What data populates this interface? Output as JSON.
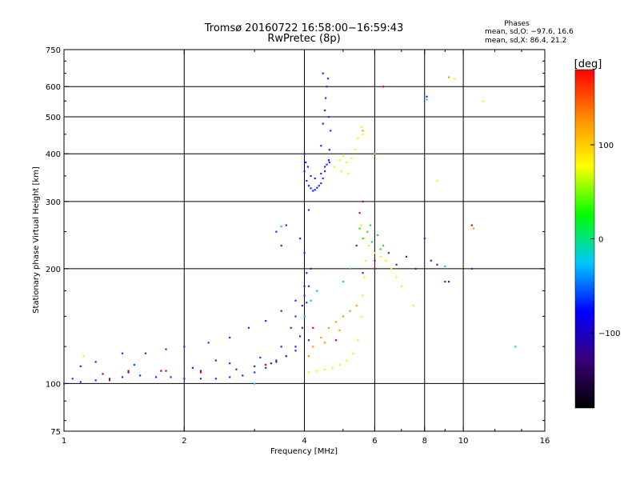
{
  "header": {
    "title_line1": "Tromsø 20160722 16:58:00−16:59:43",
    "title_line2": "RwPretec (8p)"
  },
  "phases_box": {
    "heading": "Phases",
    "o_line": "mean, sd,O: −97.6, 16.6",
    "x_line": "mean, sd,X:  86.4, 21.2"
  },
  "colorbar": {
    "unit_label": "[deg]",
    "tick_labels": [
      "100",
      "0",
      "−100"
    ],
    "tick_values": [
      100,
      0,
      -100
    ],
    "range": [
      -180,
      180
    ],
    "colormap": [
      "#000000",
      "#3a0078",
      "#0000ff",
      "#00c8ff",
      "#00ff00",
      "#ffff00",
      "#ff8c00",
      "#ff0000"
    ]
  },
  "chart_data": {
    "type": "scatter",
    "xlabel": "Frequency [MHz]",
    "ylabel": "Stationary phase Virtual Height [km]",
    "x_scale": "log",
    "y_scale": "log",
    "xlim": [
      1,
      16
    ],
    "ylim": [
      75,
      750
    ],
    "x_ticks": [
      1,
      2,
      4,
      6,
      8,
      10,
      16
    ],
    "x_tick_labels": [
      "1",
      "2",
      "4",
      "6",
      "8",
      "10",
      "16"
    ],
    "y_ticks": [
      75,
      100,
      200,
      300,
      400,
      500,
      600,
      750
    ],
    "y_tick_labels": [
      "75",
      "100",
      "200",
      "300",
      "400",
      "500",
      "600",
      "750"
    ],
    "grid_x": [
      2,
      4,
      6,
      8,
      10
    ],
    "grid_y": [
      100,
      200,
      300,
      400,
      500,
      600
    ],
    "series": [
      {
        "color": "#1e2aff",
        "points": [
          [
            1.0,
            100
          ],
          [
            1.05,
            103
          ],
          [
            1.1,
            101
          ],
          [
            1.2,
            102
          ],
          [
            1.3,
            103
          ],
          [
            1.4,
            104
          ],
          [
            1.55,
            105
          ],
          [
            1.7,
            104
          ],
          [
            1.85,
            104
          ],
          [
            2.0,
            103
          ],
          [
            2.2,
            103
          ],
          [
            2.4,
            103
          ],
          [
            2.6,
            104
          ],
          [
            2.8,
            105
          ],
          [
            3.0,
            107
          ],
          [
            3.2,
            110
          ],
          [
            3.4,
            114
          ],
          [
            3.6,
            118
          ],
          [
            3.8,
            125
          ],
          [
            3.9,
            133
          ],
          [
            3.95,
            140
          ],
          [
            4.0,
            150
          ],
          [
            4.05,
            163
          ],
          [
            4.1,
            180
          ],
          [
            4.15,
            200
          ],
          [
            1.2,
            114
          ],
          [
            1.4,
            120
          ],
          [
            1.6,
            120
          ],
          [
            1.8,
            123
          ],
          [
            2.0,
            125
          ],
          [
            2.3,
            128
          ],
          [
            2.6,
            132
          ],
          [
            2.9,
            140
          ],
          [
            3.2,
            146
          ],
          [
            3.5,
            155
          ],
          [
            3.8,
            165
          ],
          [
            4.0,
            180
          ],
          [
            1.1,
            111
          ],
          [
            1.5,
            112
          ],
          [
            2.1,
            110
          ],
          [
            2.6,
            113
          ],
          [
            3.1,
            117
          ],
          [
            3.5,
            125
          ],
          [
            3.7,
            140
          ],
          [
            3.8,
            150
          ],
          [
            3.95,
            160
          ],
          [
            4.0,
            170
          ],
          [
            4.05,
            195
          ],
          [
            3.4,
            250
          ],
          [
            3.6,
            260
          ],
          [
            3.5,
            230
          ],
          [
            3.9,
            240
          ],
          [
            4.0,
            220
          ],
          [
            4.1,
            285
          ],
          [
            4.0,
            360
          ],
          [
            4.05,
            340
          ],
          [
            4.1,
            330
          ],
          [
            4.15,
            325
          ],
          [
            4.2,
            320
          ],
          [
            4.25,
            322
          ],
          [
            4.3,
            326
          ],
          [
            4.35,
            330
          ],
          [
            4.4,
            335
          ],
          [
            4.45,
            345
          ],
          [
            4.5,
            360
          ],
          [
            4.55,
            375
          ],
          [
            4.6,
            385
          ],
          [
            4.62,
            380
          ],
          [
            4.0,
            400
          ],
          [
            4.03,
            380
          ],
          [
            4.08,
            370
          ],
          [
            4.15,
            350
          ],
          [
            4.25,
            345
          ],
          [
            4.4,
            355
          ],
          [
            4.5,
            370
          ],
          [
            4.4,
            420
          ],
          [
            4.45,
            480
          ],
          [
            4.5,
            520
          ],
          [
            4.52,
            560
          ],
          [
            4.55,
            600
          ],
          [
            4.58,
            630
          ],
          [
            4.45,
            650
          ],
          [
            4.6,
            500
          ],
          [
            4.65,
            460
          ],
          [
            4.62,
            410
          ],
          [
            8.1,
            565
          ],
          [
            8.3,
            210
          ],
          [
            9.2,
            185
          ],
          [
            10.5,
            200
          ]
        ]
      },
      {
        "color": "#7a0aa8",
        "points": [
          [
            1.25,
            106
          ],
          [
            1.45,
            107
          ],
          [
            1.75,
            108
          ],
          [
            2.2,
            108
          ],
          [
            2.7,
            109
          ],
          [
            3.0,
            111
          ],
          [
            3.4,
            115
          ],
          [
            3.8,
            122
          ],
          [
            4.1,
            130
          ],
          [
            3.3,
            113
          ],
          [
            3.6,
            118
          ],
          [
            2.4,
            115
          ],
          [
            5.4,
            230
          ],
          [
            5.6,
            195
          ],
          [
            6.0,
            210
          ],
          [
            6.5,
            220
          ],
          [
            6.8,
            205
          ],
          [
            7.2,
            215
          ],
          [
            7.6,
            200
          ],
          [
            8.0,
            240
          ],
          [
            8.6,
            205
          ],
          [
            9.0,
            185
          ]
        ]
      },
      {
        "color": "#ffee00",
        "points": [
          [
            4.1,
            107
          ],
          [
            4.3,
            108
          ],
          [
            4.5,
            109
          ],
          [
            4.7,
            110
          ],
          [
            4.9,
            112
          ],
          [
            5.1,
            115
          ],
          [
            5.3,
            120
          ],
          [
            5.45,
            130
          ],
          [
            5.55,
            150
          ],
          [
            5.6,
            170
          ],
          [
            5.65,
            190
          ],
          [
            5.7,
            210
          ],
          [
            5.65,
            240
          ],
          [
            5.55,
            260
          ],
          [
            5.8,
            230
          ],
          [
            6.0,
            220
          ],
          [
            6.2,
            215
          ],
          [
            6.4,
            210
          ],
          [
            6.6,
            200
          ],
          [
            6.8,
            190
          ],
          [
            7.0,
            180
          ],
          [
            4.75,
            370
          ],
          [
            4.9,
            385
          ],
          [
            5.0,
            395
          ],
          [
            5.1,
            380
          ],
          [
            5.25,
            390
          ],
          [
            5.35,
            410
          ],
          [
            5.45,
            440
          ],
          [
            5.55,
            470
          ],
          [
            5.6,
            450
          ],
          [
            4.95,
            360
          ],
          [
            5.15,
            355
          ],
          [
            8.6,
            340
          ],
          [
            9.5,
            630
          ],
          [
            11.2,
            550
          ],
          [
            1.12,
            118
          ],
          [
            7.5,
            160
          ]
        ]
      },
      {
        "color": "#ff9a00",
        "points": [
          [
            4.2,
            125
          ],
          [
            4.4,
            132
          ],
          [
            4.6,
            140
          ],
          [
            4.8,
            145
          ],
          [
            5.0,
            150
          ],
          [
            5.2,
            155
          ],
          [
            5.4,
            160
          ],
          [
            4.1,
            118
          ],
          [
            4.5,
            128
          ],
          [
            4.9,
            138
          ],
          [
            5.6,
            460
          ],
          [
            6.0,
            400
          ],
          [
            9.2,
            635
          ],
          [
            10.6,
            255
          ]
        ]
      },
      {
        "color": "#20e040",
        "points": [
          [
            5.6,
            240
          ],
          [
            5.75,
            250
          ],
          [
            5.9,
            235
          ],
          [
            6.1,
            245
          ],
          [
            6.3,
            230
          ],
          [
            5.5,
            255
          ],
          [
            5.85,
            260
          ],
          [
            6.2,
            225
          ],
          [
            13.5,
            125
          ]
        ]
      },
      {
        "color": "#00c8ff",
        "points": [
          [
            3.5,
            258
          ],
          [
            4.0,
            150
          ],
          [
            4.15,
            165
          ],
          [
            4.3,
            175
          ],
          [
            5.0,
            185
          ],
          [
            5.2,
            200
          ],
          [
            3.0,
            100
          ],
          [
            9.0,
            203
          ],
          [
            8.1,
            555
          ]
        ]
      },
      {
        "color": "#e80000",
        "points": [
          [
            1.3,
            102
          ],
          [
            1.45,
            108
          ],
          [
            1.8,
            108
          ],
          [
            2.2,
            107
          ],
          [
            3.2,
            112
          ],
          [
            4.2,
            140
          ],
          [
            4.8,
            130
          ],
          [
            5.5,
            280
          ],
          [
            5.6,
            300
          ],
          [
            6.0,
            200
          ],
          [
            10.5,
            260
          ],
          [
            6.3,
            600
          ]
        ]
      }
    ]
  }
}
